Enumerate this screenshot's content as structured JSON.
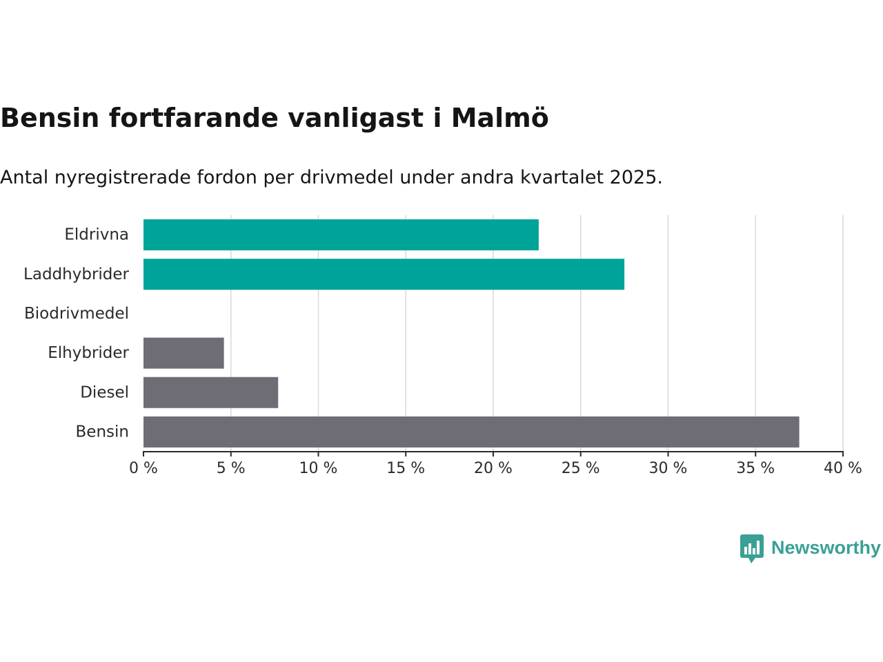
{
  "header": {
    "title": "Bensin fortfarande vanligast i Malmö",
    "subtitle": "Antal nyregistrerade fordon per drivmedel under andra kvartalet 2025."
  },
  "brand": {
    "name": "Newsworthy",
    "color": "#3aa095"
  },
  "colors": {
    "highlight": "#00a398",
    "muted": "#6e6d75",
    "grid": "#d9d9d9",
    "axis": "#2a2a2a"
  },
  "chart_data": {
    "type": "bar",
    "orientation": "horizontal",
    "title": "Bensin fortfarande vanligast i Malmö",
    "subtitle": "Antal nyregistrerade fordon per drivmedel under andra kvartalet 2025.",
    "xlabel": "",
    "ylabel": "",
    "unit": "%",
    "xlim": [
      0,
      40
    ],
    "ticks": [
      0,
      5,
      10,
      15,
      20,
      25,
      30,
      35,
      40
    ],
    "tick_labels": [
      "0 %",
      "5 %",
      "10 %",
      "15 %",
      "20 %",
      "25 %",
      "30 %",
      "35 %",
      "40 %"
    ],
    "grid": "vertical",
    "legend": "none",
    "categories": [
      "Eldrivna",
      "Laddhybrider",
      "Biodrivmedel",
      "Elhybrider",
      "Diesel",
      "Bensin"
    ],
    "values": [
      22.6,
      27.5,
      0,
      4.6,
      7.7,
      37.5
    ],
    "bar_colors": [
      "#00a398",
      "#00a398",
      "#00a398",
      "#6e6d75",
      "#6e6d75",
      "#6e6d75"
    ]
  }
}
